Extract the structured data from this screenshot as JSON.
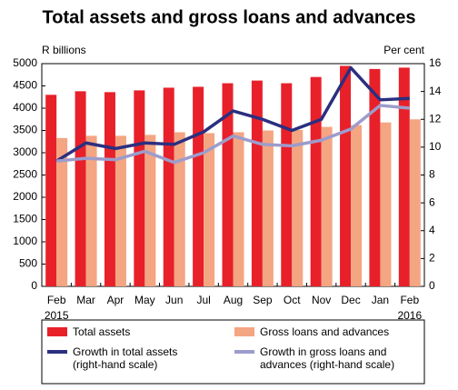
{
  "chart_data": {
    "type": "bar",
    "title": "Total assets and gross loans and advances",
    "y_label": "R billions",
    "y2_label": "Per cent",
    "categories": [
      "Feb",
      "Mar",
      "Apr",
      "May",
      "Jun",
      "Jul",
      "Aug",
      "Sep",
      "Oct",
      "Nov",
      "Dec",
      "Jan",
      "Feb"
    ],
    "year_labels": [
      "2015",
      "2016"
    ],
    "ylim": [
      0,
      5000
    ],
    "yticks": [
      0,
      500,
      1000,
      1500,
      2000,
      2500,
      3000,
      3500,
      4000,
      4500,
      5000
    ],
    "y2lim": [
      0,
      16
    ],
    "y2ticks": [
      0,
      2,
      4,
      6,
      8,
      10,
      12,
      14,
      16
    ],
    "series": [
      {
        "name": "Total assets",
        "type": "bar",
        "color": "#e8202a",
        "values": [
          4300,
          4380,
          4360,
          4400,
          4460,
          4480,
          4560,
          4620,
          4560,
          4700,
          4950,
          4880,
          4910
        ]
      },
      {
        "name": "Gross loans and advances",
        "type": "bar",
        "color": "#f4a582",
        "values": [
          3330,
          3380,
          3380,
          3400,
          3460,
          3440,
          3460,
          3500,
          3510,
          3580,
          3620,
          3680,
          3750
        ]
      },
      {
        "name": "Growth in total assets (right-hand scale)",
        "type": "line",
        "axis": "y2",
        "color": "#2b2f7f",
        "values": [
          9.0,
          10.3,
          9.9,
          10.3,
          10.2,
          11.1,
          12.6,
          12.0,
          11.2,
          12.0,
          15.7,
          13.4,
          13.5
        ]
      },
      {
        "name": "Growth in gross loans and advances (right-hand scale)",
        "type": "line",
        "axis": "y2",
        "color": "#9c9ccc",
        "values": [
          9.0,
          9.2,
          9.1,
          9.7,
          8.9,
          9.6,
          10.8,
          10.2,
          10.1,
          10.5,
          11.3,
          13.0,
          12.8
        ]
      }
    ]
  }
}
